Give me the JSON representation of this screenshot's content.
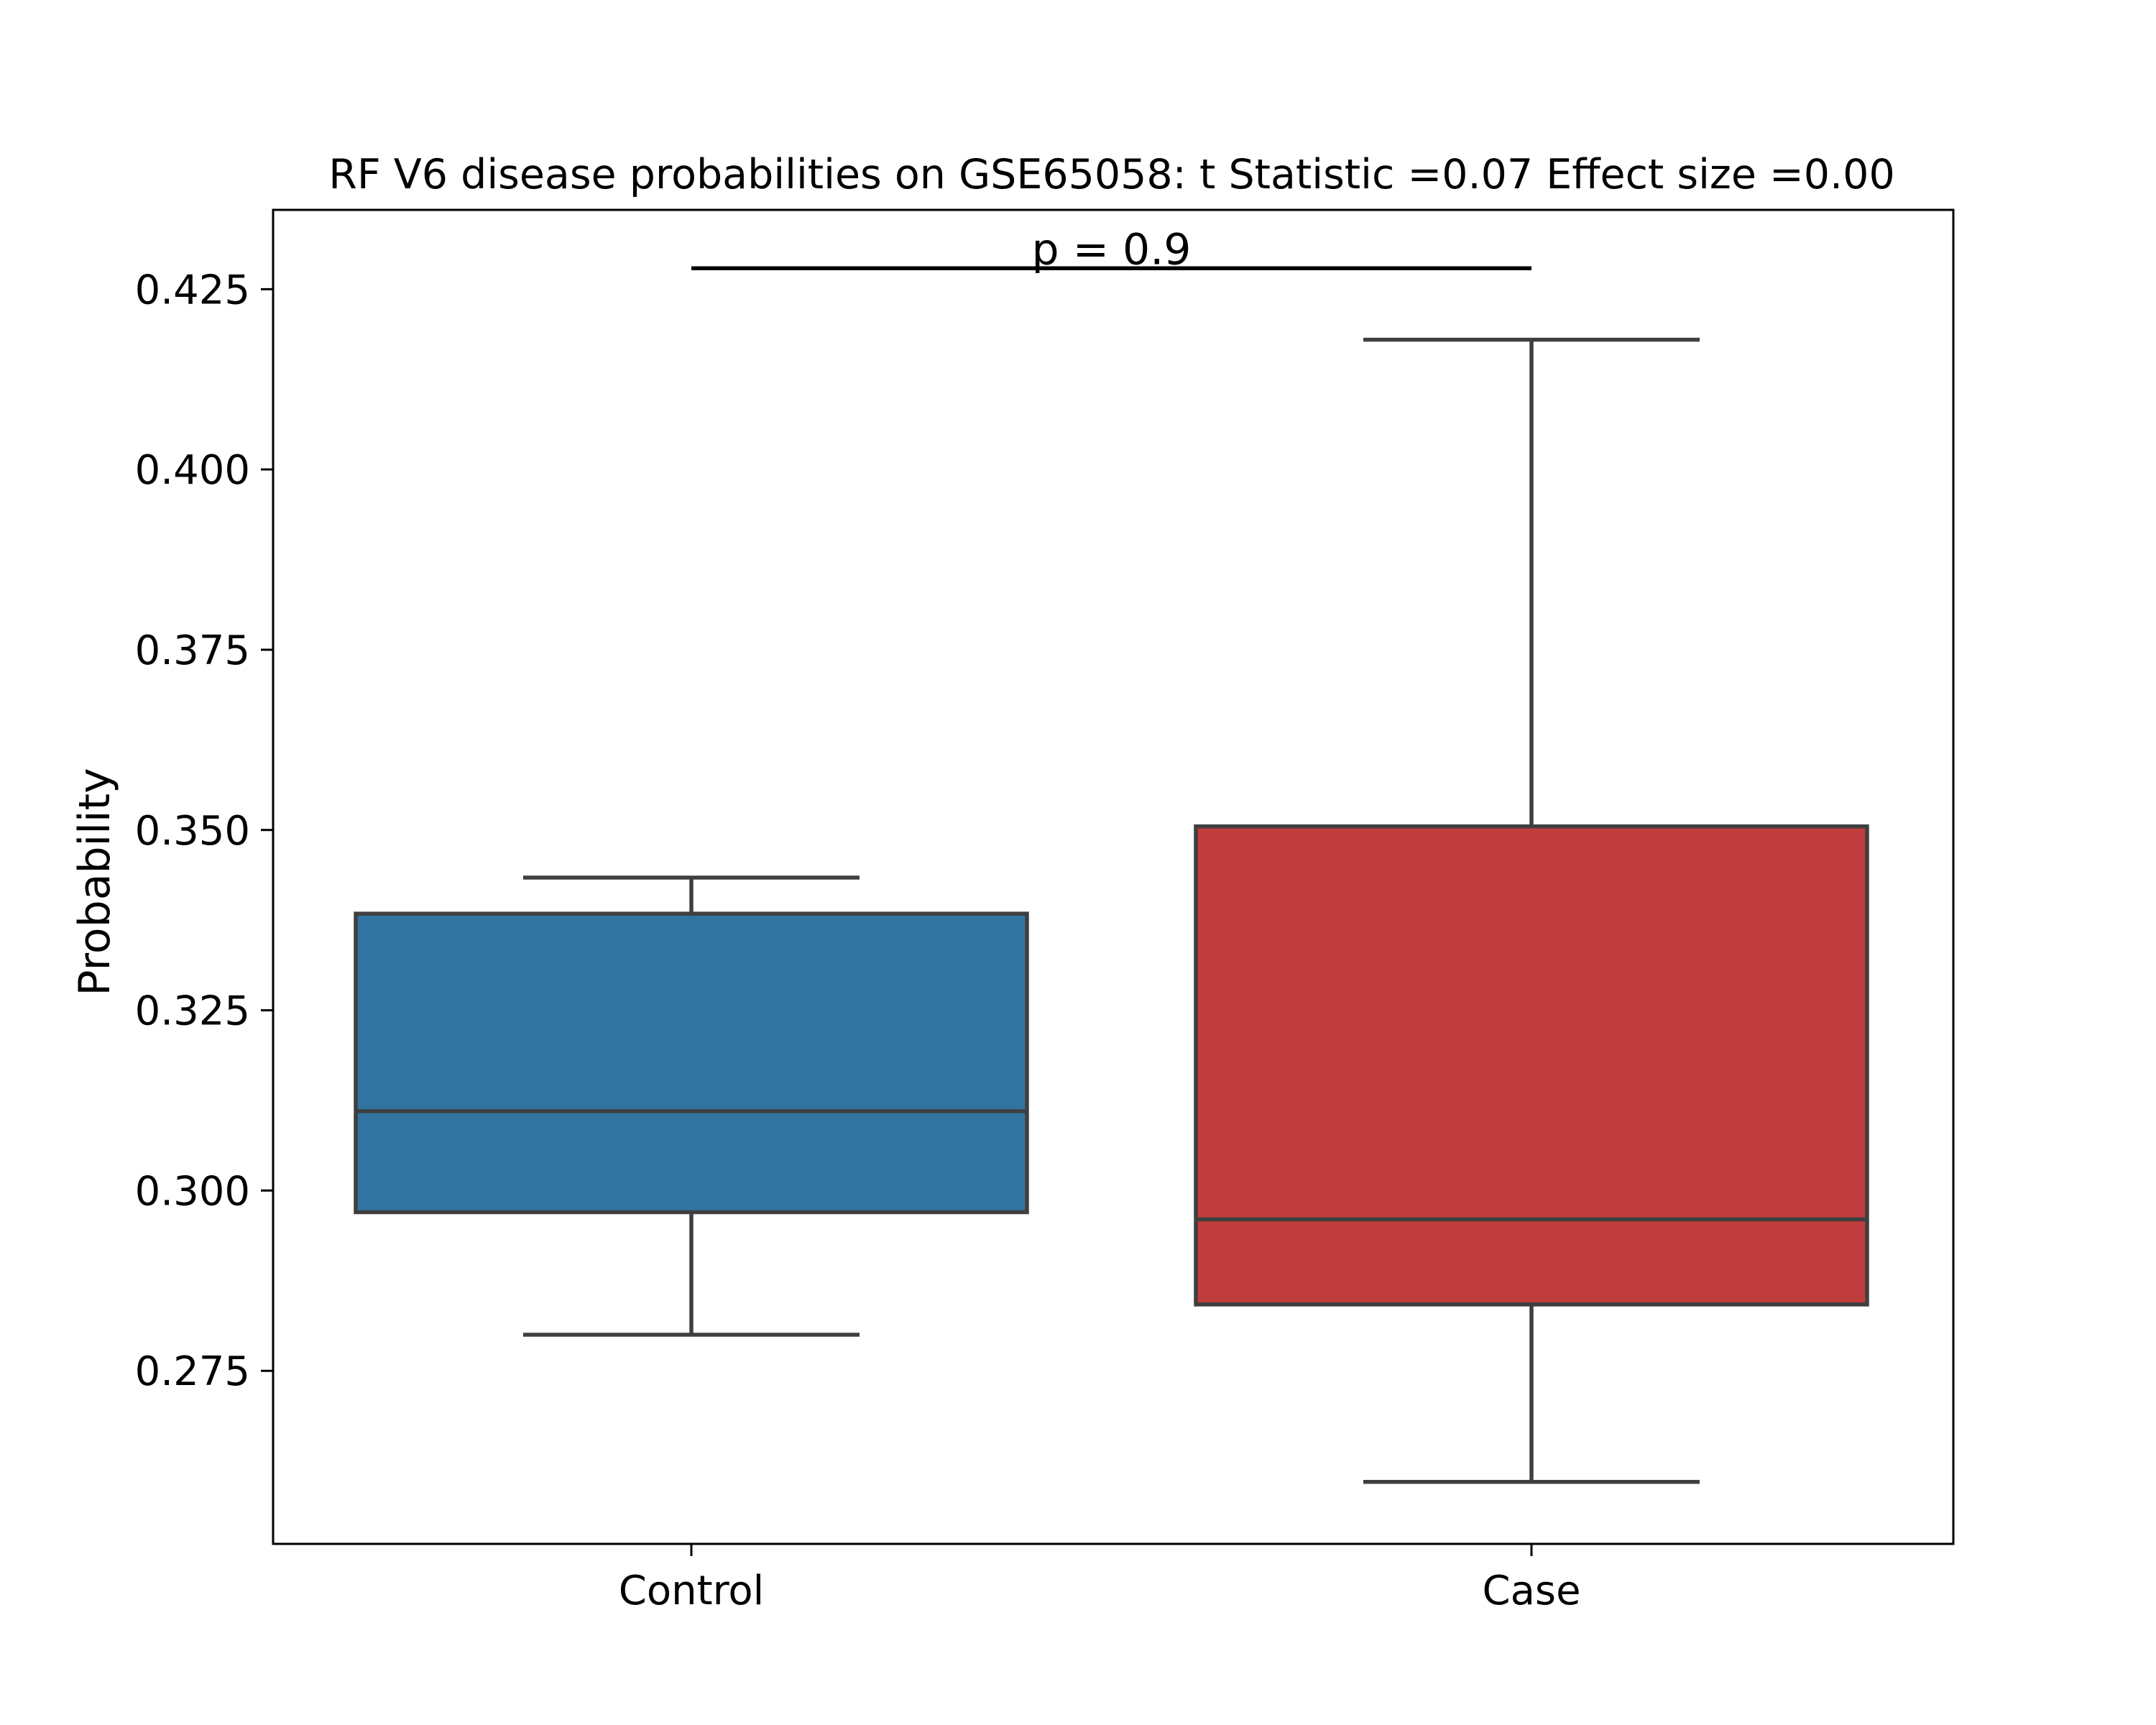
{
  "chart_data": {
    "type": "box",
    "title": "RF V6 disease probabilities on GSE65058: t Statistic =0.07 Effect size =0.00",
    "xlabel": "",
    "ylabel": "Probability",
    "ylim": [
      0.251,
      0.436
    ],
    "yticks": [
      0.275,
      0.3,
      0.325,
      0.35,
      0.375,
      0.4,
      0.425
    ],
    "ytick_labels": [
      "0.275",
      "0.300",
      "0.325",
      "0.350",
      "0.375",
      "0.400",
      "0.425"
    ],
    "categories": [
      "Control",
      "Case"
    ],
    "boxes": [
      {
        "category": "Control",
        "whisker_low": 0.28,
        "q1": 0.297,
        "median": 0.311,
        "q3": 0.3384,
        "whisker_high": 0.3434,
        "color": "#3274a1"
      },
      {
        "category": "Case",
        "whisker_low": 0.2596,
        "q1": 0.2842,
        "median": 0.296,
        "q3": 0.3505,
        "whisker_high": 0.418,
        "color": "#c03d3e"
      }
    ],
    "annotation": {
      "text": "p = 0.9",
      "between": [
        "Control",
        "Case"
      ],
      "y": 0.4279
    },
    "grid": false,
    "legend": "none",
    "colors": {
      "line": "#3f3f3f",
      "frame": "#000000"
    }
  }
}
